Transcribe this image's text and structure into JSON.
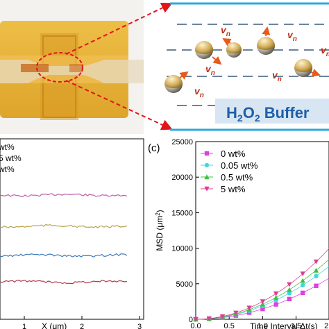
{
  "figure": {
    "photo_panel": {
      "description_none": ""
    },
    "schematic": {
      "velocity_label": "v",
      "velocity_sub": "n",
      "buffer_label_main": "H",
      "buffer_sub1": "2",
      "buffer_mid": "O",
      "buffer_sub2": "2",
      "buffer_rest": " Buffer"
    },
    "panel_b": {
      "legend": [
        "wt%",
        "5 wt%",
        "wt%"
      ],
      "xlabel": "X (μm)",
      "xticks": [
        "1",
        "2",
        "3"
      ]
    },
    "panel_c": {
      "panel_label": "(c)",
      "ylabel": "MSD (μm",
      "ylabel_sup": "2",
      "ylabel_close": ")",
      "xlabel": "Time Interval Δt(s)",
      "yticks": [
        "0",
        "5000",
        "10000",
        "15000",
        "20000",
        "25000"
      ],
      "xticks": [
        "0.0",
        "0.5",
        "1.0",
        "1.5",
        "2.0"
      ]
    }
  },
  "chart_data": [
    {
      "type": "line",
      "title": "",
      "xlabel": "X (μm)",
      "ylabel": "",
      "x_range": [
        0,
        3
      ],
      "series": [
        {
          "color": "#c05aa8",
          "y_level": 4
        },
        {
          "color": "#b8a44a",
          "y_level": 3
        },
        {
          "color": "#3d7ab8",
          "y_level": 2
        },
        {
          "color": "#b23a4a",
          "y_level": 1
        }
      ]
    },
    {
      "type": "scatter",
      "title": "",
      "xlabel": "Time Interval Δt(s)",
      "ylabel": "MSD (μm²)",
      "xlim": [
        0,
        2.2
      ],
      "ylim": [
        0,
        25000
      ],
      "x": [
        0.0,
        0.1,
        0.2,
        0.3,
        0.4,
        0.5,
        0.6,
        0.7,
        0.8,
        0.9,
        1.0,
        1.1,
        1.2,
        1.3,
        1.4,
        1.5,
        1.6,
        1.7,
        1.8,
        1.9,
        2.0,
        2.1
      ],
      "series": [
        {
          "name": "0 wt%",
          "color": "#e040e0",
          "marker": "square",
          "values": [
            0,
            15,
            60,
            130,
            230,
            360,
            520,
            710,
            930,
            1180,
            1450,
            1760,
            2090,
            2450,
            2850,
            3270,
            3720,
            4200,
            4710,
            5250,
            5820,
            6420
          ]
        },
        {
          "name": "0.05 wt%",
          "color": "#40d8e0",
          "marker": "circle",
          "values": [
            0,
            18,
            75,
            170,
            300,
            470,
            680,
            920,
            1200,
            1520,
            1880,
            2270,
            2700,
            3170,
            3680,
            4220,
            4800,
            5420,
            6080,
            6770,
            7500,
            8270
          ]
        },
        {
          "name": "0.5 wt%",
          "color": "#40c040",
          "marker": "triangle-up",
          "values": [
            0,
            20,
            85,
            190,
            340,
            530,
            760,
            1040,
            1360,
            1720,
            2120,
            2570,
            3060,
            3590,
            4160,
            4780,
            5440,
            6140,
            6880,
            7670,
            8500,
            9370
          ]
        },
        {
          "name": "5 wt%",
          "color": "#d84090",
          "marker": "triangle-down",
          "values": [
            0,
            25,
            100,
            225,
            400,
            625,
            900,
            1225,
            1600,
            2025,
            2500,
            3025,
            3600,
            4225,
            4900,
            5625,
            6400,
            7225,
            8100,
            9025,
            10000,
            11025
          ]
        }
      ]
    }
  ]
}
